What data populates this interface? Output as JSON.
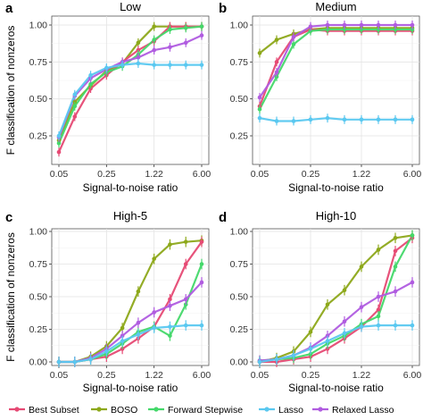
{
  "colors": {
    "Best Subset": "#e64a74",
    "BOSO": "#8da81a",
    "Forward Stepwise": "#44d86a",
    "Lasso": "#5ac8f0",
    "Relaxed Lasso": "#b05ce0"
  },
  "legend": [
    "Best Subset",
    "BOSO",
    "Forward Stepwise",
    "Lasso",
    "Relaxed Lasso"
  ],
  "chart_data": [
    {
      "type": "line",
      "panel": "a",
      "title": "Low",
      "xlabel": "Signal-to-noise ratio",
      "ylabel": "F classification of nonzeros",
      "x_ticks": [
        "0.05",
        "0.25",
        "1.22",
        "6.00"
      ],
      "y_ticks": [
        "0.25",
        "0.50",
        "0.75",
        "1.00"
      ],
      "ylim": [
        0.1,
        1.0
      ],
      "x_points": 10,
      "series": [
        {
          "name": "Best Subset",
          "values": [
            0.14,
            0.38,
            0.57,
            0.66,
            0.75,
            0.83,
            0.89,
            0.99,
            0.99,
            0.99
          ]
        },
        {
          "name": "BOSO",
          "values": [
            0.22,
            0.48,
            0.59,
            0.69,
            0.74,
            0.88,
            0.99,
            0.99,
            0.99,
            0.99
          ]
        },
        {
          "name": "Forward Stepwise",
          "values": [
            0.2,
            0.45,
            0.6,
            0.68,
            0.72,
            0.8,
            0.9,
            0.97,
            0.98,
            0.99
          ]
        },
        {
          "name": "Lasso",
          "values": [
            0.25,
            0.53,
            0.66,
            0.71,
            0.73,
            0.74,
            0.73,
            0.73,
            0.73,
            0.73
          ]
        },
        {
          "name": "Relaxed Lasso",
          "values": [
            0.24,
            0.52,
            0.64,
            0.7,
            0.75,
            0.78,
            0.83,
            0.85,
            0.88,
            0.93
          ]
        }
      ]
    },
    {
      "type": "line",
      "panel": "b",
      "title": "Medium",
      "xlabel": "Signal-to-noise ratio",
      "ylabel": "",
      "x_ticks": [
        "0.05",
        "0.25",
        "1.22",
        "6.00"
      ],
      "y_ticks": [
        "0.25",
        "0.50",
        "0.75",
        "1.00"
      ],
      "ylim": [
        0.1,
        1.0
      ],
      "x_points": 10,
      "series": [
        {
          "name": "Best Subset",
          "values": [
            0.45,
            0.75,
            0.92,
            0.97,
            0.96,
            0.96,
            0.96,
            0.96,
            0.96,
            0.96
          ]
        },
        {
          "name": "BOSO",
          "values": [
            0.81,
            0.9,
            0.94,
            0.97,
            0.98,
            0.98,
            0.98,
            0.98,
            0.98,
            0.98
          ]
        },
        {
          "name": "Forward Stepwise",
          "values": [
            0.43,
            0.65,
            0.87,
            0.96,
            0.97,
            0.97,
            0.97,
            0.97,
            0.97,
            0.97
          ]
        },
        {
          "name": "Lasso",
          "values": [
            0.37,
            0.35,
            0.35,
            0.36,
            0.37,
            0.36,
            0.36,
            0.36,
            0.36,
            0.36
          ]
        },
        {
          "name": "Relaxed Lasso",
          "values": [
            0.51,
            0.68,
            0.92,
            0.99,
            1.0,
            1.0,
            1.0,
            1.0,
            1.0,
            1.0
          ]
        }
      ]
    },
    {
      "type": "line",
      "panel": "c",
      "title": "High-5",
      "xlabel": "Signal-to-noise ratio",
      "ylabel": "F classification of nonzeros",
      "x_ticks": [
        "0.05",
        "0.25",
        "1.22",
        "6.00"
      ],
      "y_ticks": [
        "0.00",
        "0.25",
        "0.50",
        "0.75",
        "1.00"
      ],
      "ylim": [
        0.0,
        1.0
      ],
      "x_points": 10,
      "series": [
        {
          "name": "Best Subset",
          "values": [
            0.0,
            0.0,
            0.02,
            0.04,
            0.1,
            0.18,
            0.27,
            0.48,
            0.75,
            0.92
          ]
        },
        {
          "name": "BOSO",
          "values": [
            0.0,
            0.0,
            0.04,
            0.12,
            0.26,
            0.54,
            0.79,
            0.9,
            0.92,
            0.93
          ]
        },
        {
          "name": "Forward Stepwise",
          "values": [
            0.0,
            0.0,
            0.02,
            0.06,
            0.14,
            0.23,
            0.27,
            0.2,
            0.44,
            0.75
          ]
        },
        {
          "name": "Lasso",
          "values": [
            0.0,
            0.0,
            0.02,
            0.08,
            0.16,
            0.21,
            0.26,
            0.27,
            0.28,
            0.28
          ]
        },
        {
          "name": "Relaxed Lasso",
          "values": [
            0.0,
            0.0,
            0.03,
            0.1,
            0.2,
            0.3,
            0.38,
            0.43,
            0.48,
            0.61
          ]
        }
      ]
    },
    {
      "type": "line",
      "panel": "d",
      "title": "High-10",
      "xlabel": "Signal-to-noise ratio",
      "ylabel": "",
      "x_ticks": [
        "0.05",
        "0.25",
        "1.22",
        "6.00"
      ],
      "y_ticks": [
        "0.00",
        "0.25",
        "0.50",
        "0.75",
        "1.00"
      ],
      "ylim": [
        0.0,
        1.0
      ],
      "x_points": 10,
      "series": [
        {
          "name": "Best Subset",
          "values": [
            0.0,
            0.0,
            0.02,
            0.04,
            0.1,
            0.18,
            0.27,
            0.4,
            0.85,
            0.95
          ]
        },
        {
          "name": "BOSO",
          "values": [
            0.0,
            0.03,
            0.08,
            0.23,
            0.44,
            0.55,
            0.73,
            0.86,
            0.95,
            0.97
          ]
        },
        {
          "name": "Forward Stepwise",
          "values": [
            0.01,
            0.02,
            0.03,
            0.06,
            0.14,
            0.2,
            0.29,
            0.35,
            0.73,
            0.97
          ]
        },
        {
          "name": "Lasso",
          "values": [
            0.0,
            0.02,
            0.05,
            0.1,
            0.16,
            0.22,
            0.27,
            0.28,
            0.28,
            0.28
          ]
        },
        {
          "name": "Relaxed Lasso",
          "values": [
            0.01,
            0.02,
            0.05,
            0.11,
            0.2,
            0.31,
            0.42,
            0.5,
            0.54,
            0.61
          ]
        }
      ]
    }
  ]
}
